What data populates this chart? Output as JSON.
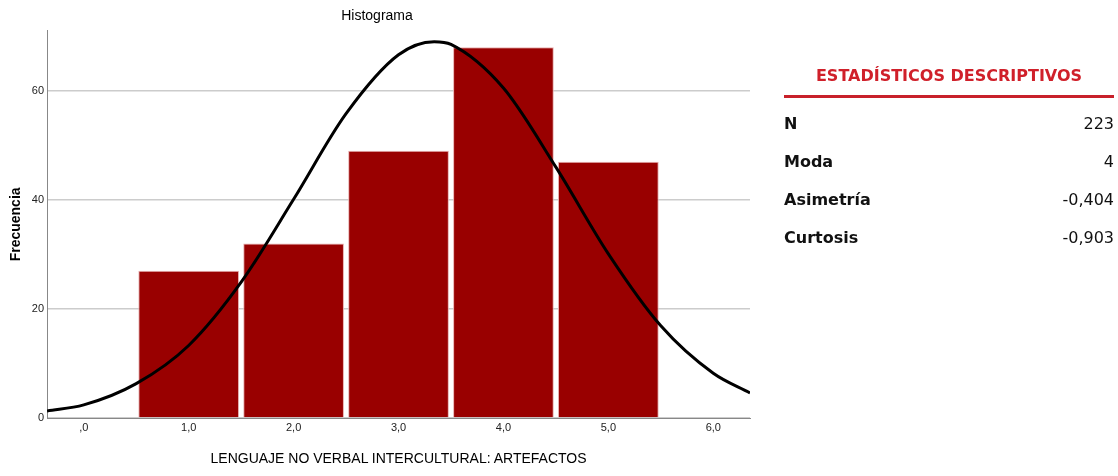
{
  "chart_data": [
    {
      "type": "histogram",
      "title": "Histograma",
      "xlabel": "LENGUAJE NO VERBAL INTERCULTURAL: ARTEFACTOS",
      "ylabel": "Frecuencia",
      "bins": [
        0.5,
        1.5,
        2.5,
        3.5,
        4.5,
        5.5
      ],
      "values": [
        27,
        32,
        49,
        68,
        47
      ],
      "color": "#990000",
      "series": [
        {
          "type": "line",
          "color": "#000000",
          "x": [
            -0.35,
            0,
            0.5,
            1,
            1.5,
            2,
            2.5,
            3,
            3.34,
            3.5,
            4,
            4.5,
            5,
            5.5,
            6,
            6.35
          ],
          "values": [
            1.3,
            2.4,
            6.3,
            13.3,
            24.9,
            40.1,
            55.8,
            66.6,
            69,
            68.5,
            60.5,
            46,
            30.1,
            16.9,
            8.2,
            4.6
          ]
        }
      ],
      "marker": "none",
      "line_style": "solid",
      "xlim": [
        -0.35,
        6.35
      ],
      "xticks": [
        {
          "value": 0,
          "label": ",0"
        },
        {
          "value": 1,
          "label": "1,0"
        },
        {
          "value": 2,
          "label": "2,0"
        },
        {
          "value": 3,
          "label": "3,0"
        },
        {
          "value": 4,
          "label": "4,0"
        },
        {
          "value": 5,
          "label": "5,0"
        },
        {
          "value": 6,
          "label": "6,0"
        }
      ],
      "ylim": [
        0,
        71
      ],
      "yticks": [
        0,
        20,
        40,
        60
      ],
      "grid": "y",
      "legend": false
    },
    {
      "type": "other",
      "title": "ESTADÍSTICOS DESCRIPTIVOS",
      "annotations": [
        "N",
        "223",
        "Moda",
        "4",
        "Asimetría",
        "-0,404",
        "Curtosis",
        "-0,903"
      ]
    }
  ]
}
